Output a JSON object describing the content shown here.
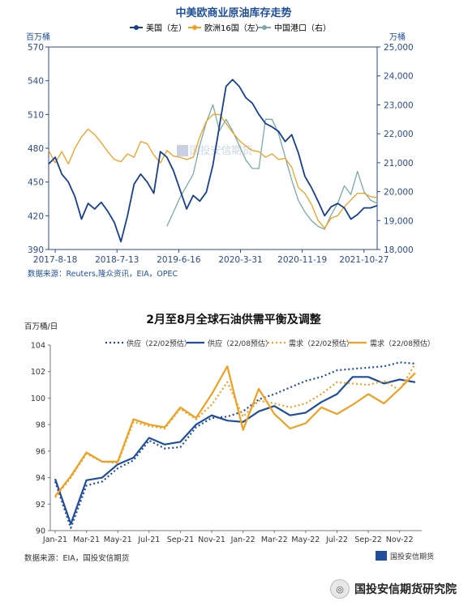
{
  "chart_data": [
    {
      "type": "line",
      "title": "中美欧商业原油库存走势",
      "legend": [
        "美国（左）",
        "欧洲16国（左）",
        "中国港口（右）"
      ],
      "ylabel_left": "百万桶",
      "ylabel_right": "万桶",
      "ylim_left": [
        390,
        570
      ],
      "ylim_right": [
        18000,
        25000
      ],
      "yticks_left": [
        "570",
        "540",
        "510",
        "480",
        "450",
        "420",
        "390"
      ],
      "yticks_right": [
        "25,000",
        "24,000",
        "23,000",
        "22,000",
        "21,000",
        "20,000",
        "19,000",
        "18,000"
      ],
      "xticks": [
        "2017-8-18",
        "2018-7-13",
        "2019-6-16",
        "2020-3-31",
        "2020-11-19",
        "2021-10-27"
      ],
      "source": "数据来源：Reuters,隆众资讯，EIA，OPEC",
      "series": [
        {
          "name": "美国（左）",
          "axis": "left",
          "x": [
            0,
            2,
            4,
            6,
            8,
            10,
            12,
            14,
            16,
            18,
            20,
            22,
            24,
            26,
            28,
            30,
            32,
            34,
            36,
            38,
            40,
            42,
            44,
            46,
            48,
            50,
            52,
            54,
            56,
            58,
            60,
            62,
            64,
            66,
            68,
            70,
            72,
            74,
            76,
            78,
            80,
            82,
            84,
            86,
            88,
            90,
            92,
            94,
            96,
            98,
            100
          ],
          "y": [
            466,
            472,
            457,
            450,
            437,
            417,
            431,
            426,
            432,
            424,
            414,
            397,
            420,
            448,
            457,
            450,
            440,
            477,
            472,
            460,
            443,
            426,
            438,
            433,
            441,
            465,
            500,
            535,
            541,
            535,
            525,
            520,
            510,
            502,
            499,
            495,
            486,
            492,
            476,
            455,
            445,
            433,
            420,
            428,
            431,
            427,
            417,
            421,
            427,
            427,
            429
          ]
        },
        {
          "name": "欧洲16国（左）",
          "axis": "left",
          "x": [
            0,
            2,
            4,
            6,
            8,
            10,
            12,
            14,
            16,
            18,
            20,
            22,
            24,
            26,
            28,
            30,
            32,
            34,
            36,
            38,
            40,
            42,
            44,
            46,
            48,
            50,
            52,
            54,
            56,
            58,
            60,
            62,
            64,
            66,
            68,
            70,
            72,
            74,
            76,
            78,
            80,
            82,
            84,
            86,
            88,
            90,
            92,
            94,
            96,
            98,
            100
          ],
          "y": [
            478,
            467,
            477,
            466,
            480,
            490,
            497,
            492,
            485,
            477,
            470,
            468,
            475,
            472,
            486,
            484,
            474,
            467,
            478,
            473,
            472,
            470,
            472,
            490,
            504,
            510,
            510,
            502,
            494,
            487,
            482,
            478,
            477,
            472,
            475,
            470,
            471,
            463,
            445,
            440,
            430,
            416,
            409,
            418,
            420,
            428,
            434,
            440,
            440,
            437,
            436
          ]
        },
        {
          "name": "中国港口（右）",
          "axis": "right",
          "x": [
            36,
            38,
            40,
            42,
            44,
            46,
            48,
            50,
            52,
            54,
            56,
            58,
            60,
            62,
            64,
            66,
            68,
            70,
            72,
            74,
            76,
            78,
            80,
            82,
            84,
            86,
            88,
            90,
            92,
            94,
            96,
            98,
            100
          ],
          "y": [
            18800,
            19300,
            19800,
            20200,
            20600,
            21600,
            22400,
            23000,
            22100,
            22500,
            22100,
            21600,
            21100,
            20800,
            20800,
            22500,
            22500,
            22000,
            21200,
            20400,
            19700,
            19300,
            19000,
            18800,
            18700,
            19200,
            19600,
            20200,
            19900,
            20700,
            20000,
            19700,
            19600
          ]
        }
      ]
    },
    {
      "type": "line",
      "title": "2月至8月全球石油供需平衡及调整",
      "ylabel": "百万桶/日",
      "ylim": [
        90,
        104
      ],
      "yticks": [
        "104",
        "102",
        "100",
        "98",
        "96",
        "94",
        "92",
        "90"
      ],
      "categories": [
        "Jan-21",
        "Feb-21",
        "Mar-21",
        "Apr-21",
        "May-21",
        "Jun-21",
        "Jul-21",
        "Aug-21",
        "Sep-21",
        "Oct-21",
        "Nov-21",
        "Dec-21",
        "Jan-22",
        "Feb-22",
        "Mar-22",
        "Apr-22",
        "May-22",
        "Jun-22",
        "Jul-22",
        "Aug-22",
        "Sep-22",
        "Oct-22",
        "Nov-22",
        "Dec-22"
      ],
      "xtick_labels": [
        "Jan-21",
        "Mar-21",
        "May-21",
        "Jul-21",
        "Sep-21",
        "Nov-21",
        "Jan-22",
        "Mar-22",
        "May-22",
        "Jul-22",
        "Sep-22",
        "Nov-22"
      ],
      "source": "数据来源：EIA，国投安信期货",
      "series": [
        {
          "name": "供应（22/02预估）",
          "color": "#1f4e9c",
          "dash": true,
          "values": [
            93.7,
            90.2,
            93.4,
            93.7,
            94.7,
            95.3,
            96.8,
            96.2,
            96.3,
            97.8,
            98.5,
            98.6,
            99.0,
            99.9,
            100.3,
            100.8,
            101.3,
            101.6,
            102.1,
            102.2,
            102.3,
            102.4,
            102.7,
            102.6
          ]
        },
        {
          "name": "供应（22/08预估）",
          "color": "#1f4e9c",
          "dash": false,
          "values": [
            93.9,
            90.5,
            93.8,
            94.0,
            95.0,
            95.5,
            97.0,
            96.5,
            96.7,
            98.0,
            98.7,
            98.3,
            98.2,
            99.0,
            99.4,
            98.7,
            98.9,
            99.7,
            100.3,
            101.6,
            101.6,
            101.1,
            101.4,
            101.2
          ]
        },
        {
          "name": "需求（22/02预估）",
          "color": "#f0a020",
          "dash": true,
          "values": [
            92.5,
            94.0,
            95.8,
            95.2,
            95.1,
            98.2,
            97.9,
            97.7,
            99.2,
            98.4,
            99.5,
            101.2,
            98.6,
            99.8,
            99.6,
            99.3,
            99.6,
            100.3,
            101.2,
            101.1,
            101.0,
            101.3,
            100.6,
            102.6
          ]
        },
        {
          "name": "需求（22/08预估）",
          "color": "#f0a020",
          "dash": false,
          "values": [
            92.6,
            94.1,
            95.9,
            95.2,
            95.2,
            98.4,
            98.0,
            97.8,
            99.3,
            98.5,
            100.3,
            102.4,
            97.6,
            100.7,
            98.8,
            97.7,
            98.1,
            99.3,
            98.8,
            99.5,
            100.3,
            99.6,
            100.7,
            101.9
          ]
        }
      ]
    }
  ],
  "colors": {
    "us": "#163f8f",
    "eu": "#f0a020",
    "cn": "#7aa9a7",
    "axis": "#2b4a8a"
  },
  "watermark": "国投安信期货",
  "brand": "国投安信期货研究院"
}
